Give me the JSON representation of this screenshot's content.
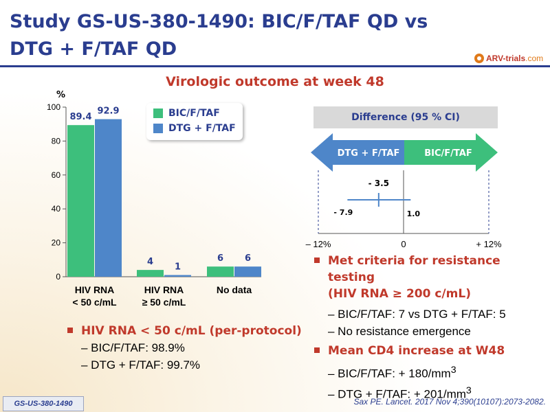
{
  "title": {
    "line1": "Study GS-US-380-1490: BIC/F/TAF QD vs",
    "line2": "DTG + F/TAF QD"
  },
  "logo": {
    "text": "ARV-trials",
    "suffix": ".com"
  },
  "subtitle": "Virologic outcome at week 48",
  "colors": {
    "bic": "#3dbf7c",
    "dtg": "#4e86c9",
    "title": "#2a3d8f",
    "accent": "#c0392b"
  },
  "chart_data": [
    {
      "type": "bar",
      "ylabel": "%",
      "ylim": [
        0,
        100
      ],
      "yticks": [
        0,
        20,
        40,
        60,
        80,
        100
      ],
      "categories": [
        {
          "line1": "HIV RNA",
          "line2": "< 50 c/mL"
        },
        {
          "line1": "HIV RNA",
          "line2": "≥ 50 c/mL"
        },
        {
          "line1": "No data",
          "line2": ""
        }
      ],
      "series": [
        {
          "name": "BIC/F/TAF",
          "values": [
            89.4,
            4,
            6
          ],
          "labels": [
            "89.4",
            "4",
            "6"
          ]
        },
        {
          "name": "DTG + F/TAF",
          "values": [
            92.9,
            1,
            6
          ],
          "labels": [
            "92.9",
            "1",
            "6"
          ]
        }
      ],
      "legend": "top-right"
    },
    {
      "type": "interval",
      "title": "Difference (95 % CI)",
      "arrows": {
        "left": "DTG + F/TAF",
        "right": "BIC/F/TAF"
      },
      "xlim": [
        -12,
        12
      ],
      "xticks": [
        {
          "value": -12,
          "label": "– 12%"
        },
        {
          "value": 0,
          "label": "0"
        },
        {
          "value": 12,
          "label": "+ 12%"
        }
      ],
      "point": {
        "value": -3.5,
        "label": "- 3.5"
      },
      "lower": {
        "value": -7.9,
        "label": "- 7.9"
      },
      "upper": {
        "value": 1.0,
        "label": "1.0"
      }
    }
  ],
  "left_bullets": {
    "head": "HIV RNA < 50 c/mL (per-protocol)",
    "subs": [
      "– BIC/F/TAF: 98.9%",
      "– DTG + F/TAF: 99.7%"
    ]
  },
  "right_bullets": {
    "head1": "Met criteria for resistance testing",
    "head1b": "(HIV RNA ≥ 200 c/mL)",
    "sub1": "– BIC/F/TAF: 7 vs DTG + F/TAF: 5",
    "sub2": "–  No resistance emergence",
    "head2": "Mean CD4 increase at W48",
    "sub3": "– BIC/F/TAF: + 180/mm",
    "sub4": "– DTG + F/TAF: + 201/mm",
    "sup": "3"
  },
  "study_tag": "GS-US-380-1490",
  "citation": "Sax PE. Lancet. 2017 Nov 4;390(10107):2073-2082."
}
